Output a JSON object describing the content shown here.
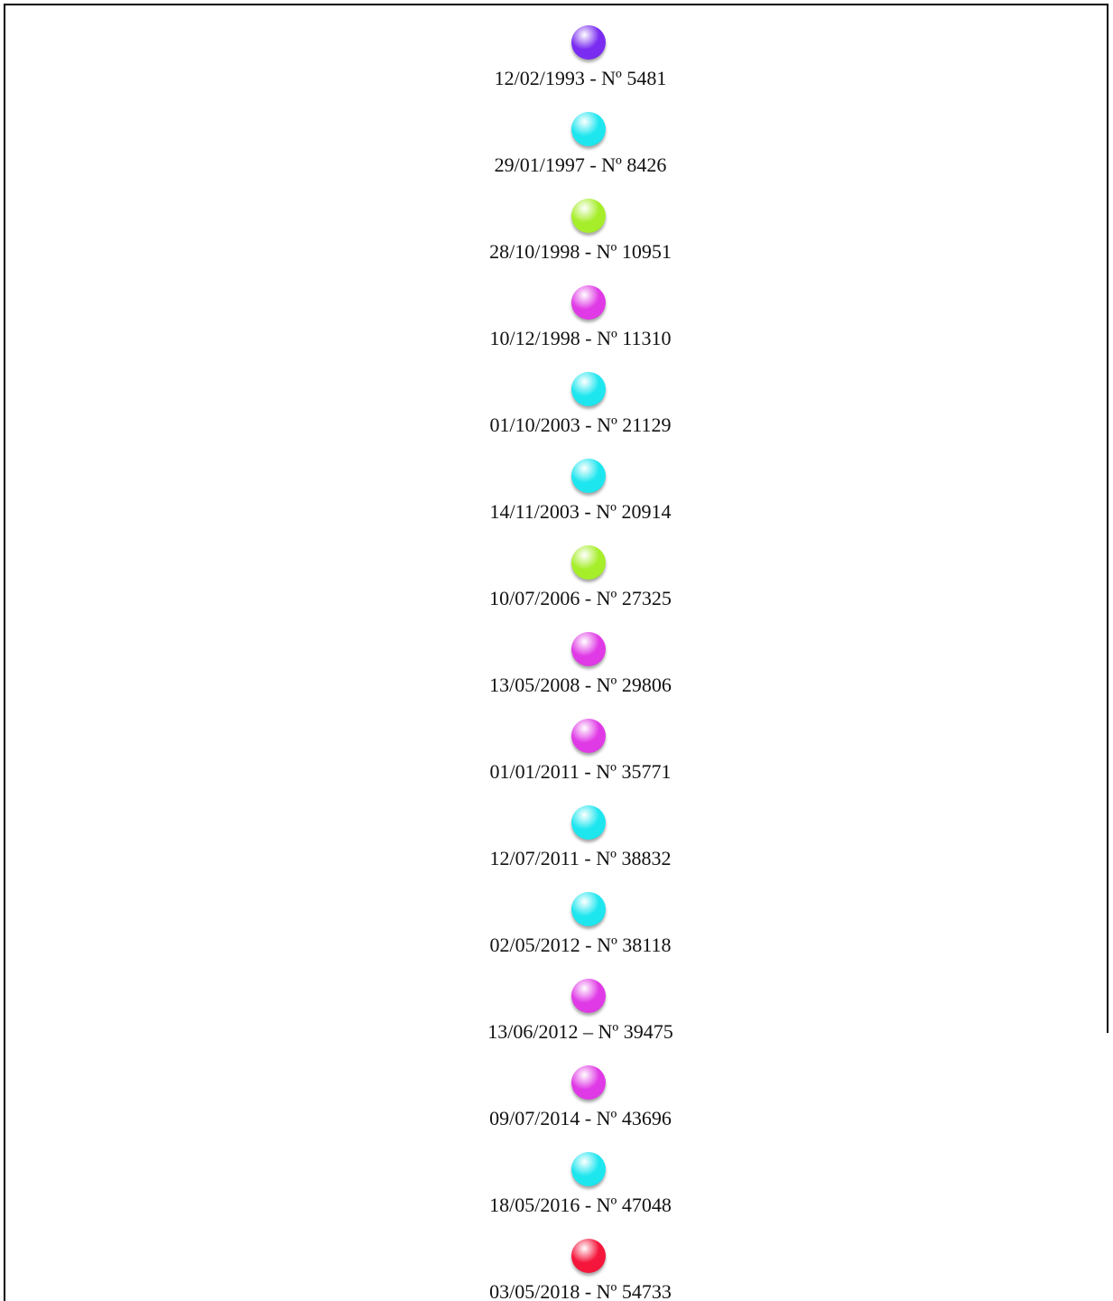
{
  "items": [
    {
      "label": "12/02/1993 - Nº 5481",
      "color": "#7a2cf0"
    },
    {
      "label": "29/01/1997 - Nº 8426",
      "color": "#1ee6ef"
    },
    {
      "label": "28/10/1998 - Nº 10951",
      "color": "#a6ee2a"
    },
    {
      "label": "10/12/1998 - Nº 11310",
      "color": "#e03ae6"
    },
    {
      "label": "01/10/2003 - Nº 21129",
      "color": "#1ee6ef"
    },
    {
      "label": "14/11/2003 - Nº 20914",
      "color": "#1ee6ef"
    },
    {
      "label": "10/07/2006 - Nº 27325",
      "color": "#a6ee2a"
    },
    {
      "label": "13/05/2008 - Nº 29806",
      "color": "#e03ae6"
    },
    {
      "label": "01/01/2011 - Nº 35771",
      "color": "#e03ae6"
    },
    {
      "label": "12/07/2011 - Nº 38832",
      "color": "#1ee6ef"
    },
    {
      "label": "02/05/2012 - Nº 38118",
      "color": "#1ee6ef"
    },
    {
      "label": "13/06/2012 – Nº 39475",
      "color": "#e03ae6"
    },
    {
      "label": "09/07/2014 - Nº 43696",
      "color": "#e03ae6"
    },
    {
      "label": "18/05/2016 - Nº 47048",
      "color": "#1ee6ef"
    },
    {
      "label": "03/05/2018 - Nº 54733",
      "color": "#f5163c"
    }
  ]
}
